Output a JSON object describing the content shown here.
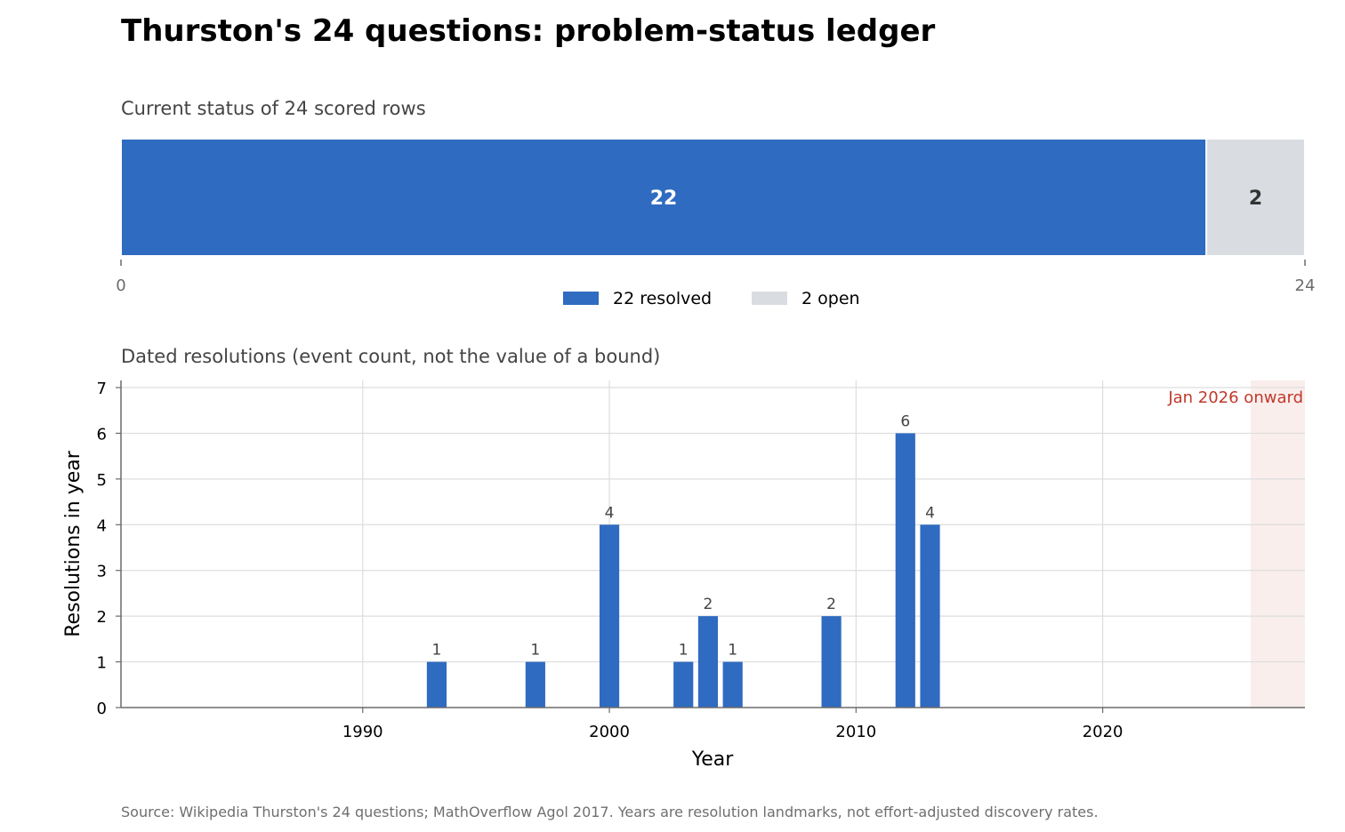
{
  "title": "Thurston's 24 questions: problem-status ledger",
  "source_note": "Source: Wikipedia Thurston's 24 questions; MathOverflow Agol 2017. Years are resolution landmarks, not effort-adjusted discovery rates.",
  "colors": {
    "resolved": "#2f6bc0",
    "open": "#d9dde2",
    "annotation": "#c0392b",
    "shade": "#f9eeec",
    "grid": "#dddddd"
  },
  "chart_data": [
    {
      "type": "bar",
      "orientation": "horizontal-stacked",
      "subtitle": "Current status of 24 scored rows",
      "segments": [
        {
          "name": "resolved",
          "value": 22,
          "label": "22",
          "legend": "22 resolved"
        },
        {
          "name": "open",
          "value": 2,
          "label": "2",
          "legend": "2 open"
        }
      ],
      "xlim": [
        0,
        24
      ],
      "xticks": [
        "0",
        "24"
      ],
      "legend_position": "bottom-center"
    },
    {
      "type": "bar",
      "subtitle": "Dated resolutions (event count, not the value of a bound)",
      "xlabel": "Year",
      "ylabel": "Resolutions in year",
      "xlim": [
        1980.2,
        2028.2
      ],
      "ylim": [
        0,
        7
      ],
      "xticks": [
        1990,
        2000,
        2010,
        2020
      ],
      "yticks": [
        0,
        1,
        2,
        3,
        4,
        5,
        6,
        7
      ],
      "grid": true,
      "points": [
        {
          "year": 1993,
          "count": 1
        },
        {
          "year": 1997,
          "count": 1
        },
        {
          "year": 2000,
          "count": 4
        },
        {
          "year": 2003,
          "count": 1
        },
        {
          "year": 2004,
          "count": 2
        },
        {
          "year": 2005,
          "count": 1
        },
        {
          "year": 2009,
          "count": 2
        },
        {
          "year": 2012,
          "count": 6
        },
        {
          "year": 2013,
          "count": 4
        }
      ],
      "shaded_region": {
        "from": 2026,
        "to": 2028.2,
        "label": "Jan 2026 onward"
      }
    }
  ]
}
